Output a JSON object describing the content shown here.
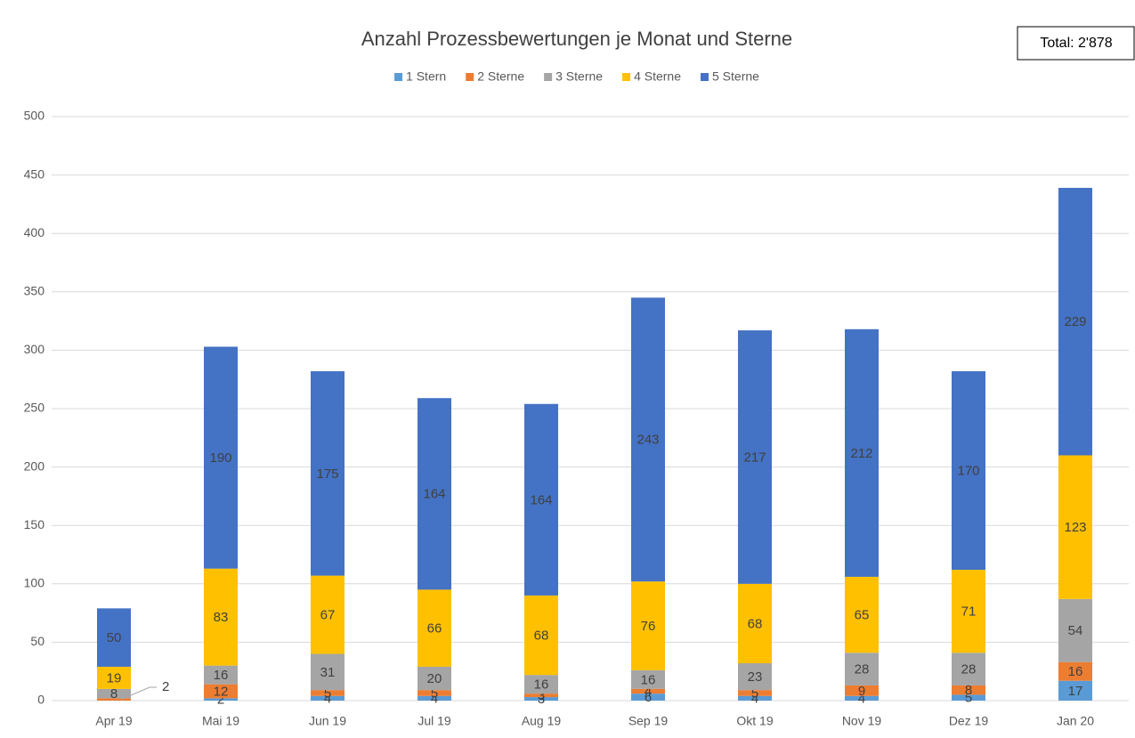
{
  "chart_data": {
    "type": "stacked_bar",
    "title": "Anzahl Prozessbewertungen je Monat und Sterne",
    "annotation": "Total: 2'878",
    "categories": [
      "Apr 19",
      "Mai 19",
      "Jun 19",
      "Jul 19",
      "Aug 19",
      "Sep 19",
      "Okt 19",
      "Nov 19",
      "Dez 19",
      "Jan 20"
    ],
    "series": [
      {
        "name": "1 Stern",
        "color": "#5b9bd5",
        "values": [
          null,
          2,
          4,
          4,
          3,
          6,
          4,
          4,
          5,
          17
        ]
      },
      {
        "name": "2 Sterne",
        "color": "#ed7d31",
        "values": [
          2,
          12,
          5,
          5,
          3,
          4,
          5,
          9,
          8,
          16
        ]
      },
      {
        "name": "3 Sterne",
        "color": "#a5a5a5",
        "values": [
          8,
          16,
          31,
          20,
          16,
          16,
          23,
          28,
          28,
          54
        ]
      },
      {
        "name": "4 Sterne",
        "color": "#ffc000",
        "values": [
          19,
          83,
          67,
          66,
          68,
          76,
          68,
          65,
          71,
          123
        ]
      },
      {
        "name": "5 Sterne",
        "color": "#4472c4",
        "values": [
          50,
          190,
          175,
          164,
          164,
          243,
          217,
          212,
          170,
          229
        ]
      }
    ],
    "ylim": [
      0,
      500
    ],
    "yticks": [
      0,
      50,
      100,
      150,
      200,
      250,
      300,
      350,
      400,
      450,
      500
    ],
    "grid": true,
    "legend": "top"
  }
}
